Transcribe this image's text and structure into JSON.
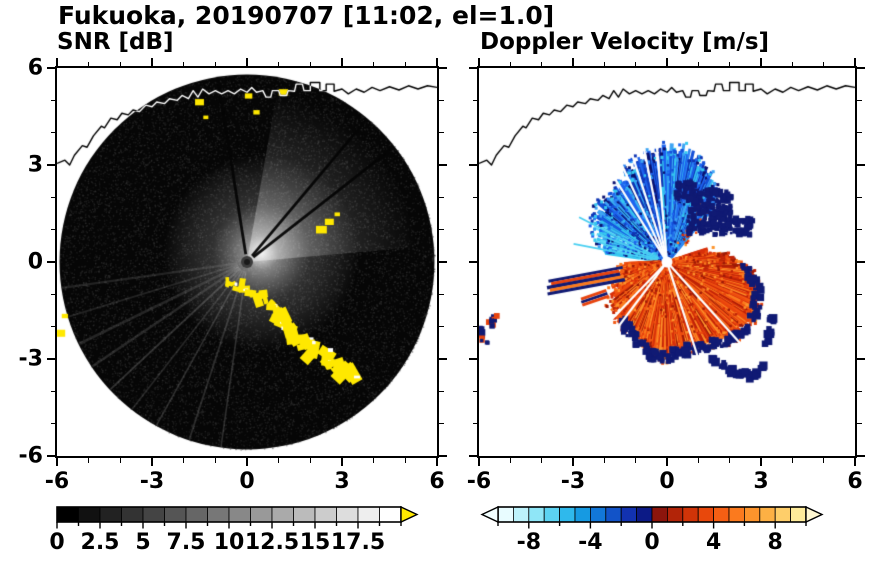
{
  "figure_title": "Fukuoka, 20190707 [11:02, el=1.0]",
  "panels": {
    "snr": {
      "title": "SNR [dB]",
      "x_tick_labels": [
        "-6",
        "-3",
        "0",
        "3",
        "6"
      ],
      "y_tick_labels": [
        "6",
        "3",
        "0",
        "-3",
        "-6"
      ],
      "colorbar_labels": [
        "0",
        "2.5",
        "5",
        "7.5",
        "10",
        "12.5",
        "15",
        "17.5"
      ]
    },
    "doppler": {
      "title": "Doppler Velocity [m/s]",
      "x_tick_labels": [
        "-6",
        "-3",
        "0",
        "3",
        "6"
      ],
      "colorbar_labels": [
        "-8",
        "-4",
        "0",
        "4",
        "8"
      ]
    }
  },
  "chart_data": [
    {
      "type": "heatmap",
      "title": "SNR [dB]",
      "variable": "signal-to-noise ratio",
      "units": "dB",
      "xlim": [
        -6,
        6
      ],
      "ylim": [
        -6,
        6
      ],
      "axis_tick_values": [
        -6,
        -3,
        0,
        3,
        6
      ],
      "minor_tick_step": 1,
      "grid": false,
      "colorbar": {
        "orientation": "horizontal",
        "min": 0,
        "max": 20,
        "tick_step": 1.25,
        "label_values": [
          0,
          2.5,
          5,
          7.5,
          10,
          12.5,
          15,
          17.5
        ],
        "segment_colors": [
          "#000000",
          "#111111",
          "#222222",
          "#333333",
          "#444444",
          "#555555",
          "#666666",
          "#777777",
          "#888888",
          "#999999",
          "#aaaaaa",
          "#bbbbbb",
          "#cccccc",
          "#dddddd",
          "#eeeeee",
          "#ffffff"
        ],
        "over_arrow_color": "#ffe800"
      },
      "scan": {
        "disk_radius_km": 5.92,
        "background_color": "#060606",
        "glow": {
          "max_radius_km": 3.1,
          "wedge_math_deg": [
            5,
            80
          ],
          "wedge_radius_km": 5.5
        },
        "light_spokes_math_deg": [
          188,
          197,
          206,
          214,
          223,
          232,
          241,
          252,
          262
        ],
        "dark_spokes_math_deg": [
          38,
          50,
          99
        ],
        "clutter_color": "#ffe800",
        "clutter_arc_km": [
          [
            -0.5,
            -0.55
          ],
          [
            -0.2,
            -0.75
          ],
          [
            0.1,
            -0.9
          ],
          [
            0.45,
            -1.05
          ],
          [
            0.75,
            -1.3
          ],
          [
            1.0,
            -1.55
          ],
          [
            1.2,
            -1.8
          ],
          [
            1.35,
            -2.1
          ],
          [
            1.55,
            -2.35
          ],
          [
            1.8,
            -2.55
          ],
          [
            2.1,
            -2.75
          ],
          [
            2.4,
            -2.95
          ],
          [
            2.7,
            -3.15
          ],
          [
            3.0,
            -3.3
          ],
          [
            3.3,
            -3.35
          ]
        ],
        "clutter_spots_km": [
          [
            -5.75,
            -1.7
          ],
          [
            -5.9,
            -2.25
          ],
          [
            2.35,
            0.95
          ],
          [
            2.6,
            1.2
          ],
          [
            2.85,
            1.45
          ],
          [
            -1.5,
            4.9
          ],
          [
            -1.3,
            4.45
          ],
          [
            0.3,
            4.6
          ],
          [
            0.05,
            5.1
          ],
          [
            1.15,
            5.2
          ]
        ],
        "radar_dot_color": "#3c3c3c"
      }
    },
    {
      "type": "heatmap",
      "title": "Doppler Velocity [m/s]",
      "variable": "Doppler velocity",
      "units": "m/s",
      "xlim": [
        -6,
        6
      ],
      "ylim": [
        -6,
        6
      ],
      "axis_tick_values": [
        -6,
        -3,
        0,
        3,
        6
      ],
      "minor_tick_step": 1,
      "grid": false,
      "colorbar": {
        "orientation": "horizontal",
        "min": -10,
        "max": 10,
        "tick_step": 2,
        "label_values": [
          -8,
          -4,
          0,
          4,
          8
        ],
        "segment_colors": [
          "#e8fcff",
          "#bdf2fb",
          "#8fe6f7",
          "#5cd3f2",
          "#2fb9ec",
          "#169ae2",
          "#1277d8",
          "#1253c8",
          "#1232b0",
          "#0c1a86",
          "#8c150c",
          "#b22408",
          "#d03408",
          "#e8480c",
          "#f55f14",
          "#fb7a1e",
          "#fd942c",
          "#fdb044",
          "#fece6a",
          "#feeb9a"
        ],
        "under_arrow_color": "#f2ffff",
        "over_arrow_color": "#fff8d2"
      },
      "fields": {
        "toward_fan": {
          "math_deg_range": [
            50,
            172
          ],
          "radius_ctrl": [
            [
              50,
              2.3
            ],
            [
              62,
              2.9
            ],
            [
              72,
              3.3
            ],
            [
              82,
              3.55
            ],
            [
              92,
              3.5
            ],
            [
              102,
              3.35
            ],
            [
              112,
              3.1
            ],
            [
              122,
              2.75
            ],
            [
              132,
              2.5
            ],
            [
              142,
              2.75
            ],
            [
              152,
              2.45
            ],
            [
              162,
              2.1
            ],
            [
              172,
              1.75
            ]
          ],
          "palette": [
            "#1e64ee",
            "#1e64ee",
            "#2b84f4",
            "#1450d8",
            "#0f35b4",
            "#3da4f4",
            "#35c8f0",
            "#0a1270"
          ],
          "edge_palette": [
            "#35c8f0",
            "#63dcf8",
            "#2b9ae8",
            "#9aecfb"
          ],
          "gap_math_deg": [
            95,
            101.5,
            108,
            115,
            122
          ]
        },
        "away_fan": {
          "math_deg_range": [
            -178,
            18
          ],
          "radius_ctrl": [
            [
              -178,
              1.2
            ],
            [
              -172,
              1.3
            ],
            [
              -162,
              1.5
            ],
            [
              -152,
              1.8
            ],
            [
              -142,
              2.1
            ],
            [
              -132,
              2.2
            ],
            [
              -122,
              2.3
            ],
            [
              -112,
              2.5
            ],
            [
              -102,
              2.8
            ],
            [
              -92,
              2.9
            ],
            [
              -82,
              2.75
            ],
            [
              -72,
              2.7
            ],
            [
              -62,
              2.85
            ],
            [
              -52,
              3.0
            ],
            [
              -42,
              3.15
            ],
            [
              -32,
              3.1
            ],
            [
              -22,
              2.95
            ],
            [
              -12,
              2.7
            ],
            [
              -2,
              2.3
            ],
            [
              8,
              1.7
            ],
            [
              18,
              1.1
            ]
          ],
          "palette": [
            "#e8440e",
            "#f25a14",
            "#d8300a",
            "#fb7a1e",
            "#c02408",
            "#fd942c",
            "#f0500f",
            "#9e1a06"
          ],
          "gap_math_deg": [
            -127,
            -134,
            -48,
            -72
          ]
        },
        "aliased_color": "#101a74",
        "aliased_clusters": [
          {
            "center": [
              1.35,
              1.55
            ],
            "spread": 0.7,
            "n": 240
          },
          {
            "center": [
              2.45,
              1.1
            ],
            "spread": 0.28,
            "n": 40
          },
          {
            "center": [
              0.6,
              2.2
            ],
            "spread": 0.3,
            "n": 40
          }
        ],
        "aliased_arc_km": [
          [
            1.55,
            -3.05
          ],
          [
            1.8,
            -3.2
          ],
          [
            2.05,
            -3.35
          ],
          [
            2.3,
            -3.45
          ],
          [
            2.55,
            -3.5
          ],
          [
            2.8,
            -3.45
          ],
          [
            3.0,
            -3.3
          ],
          [
            3.15,
            -2.5
          ],
          [
            3.3,
            -2.15
          ],
          [
            3.35,
            -1.8
          ]
        ],
        "stripe_bands": [
          {
            "from": [
              -3.85,
              -0.8
            ],
            "to": [
              -1.35,
              -0.35
            ],
            "colors": [
              "#101a74",
              "#e8440e",
              "#101a74",
              "#fb7a1e",
              "#101a74"
            ]
          },
          {
            "from": [
              -2.75,
              -1.25
            ],
            "to": [
              -1.85,
              -0.95
            ],
            "colors": [
              "#e8440e",
              "#101a74",
              "#e8440e"
            ]
          }
        ],
        "west_spots": [
          {
            "center": [
              -5.55,
              -1.82
            ],
            "spread": 0.16,
            "n": 10,
            "colors": [
              "#e8440e",
              "#101a74"
            ]
          },
          {
            "center": [
              -5.82,
              -2.38
            ],
            "spread": 0.12,
            "n": 7,
            "colors": [
              "#101a74",
              "#e8440e"
            ]
          },
          {
            "center": [
              -5.95,
              -2.1
            ],
            "spread": 0.08,
            "n": 4,
            "colors": [
              "#101a74"
            ]
          }
        ]
      }
    }
  ],
  "coastline_km": [
    [
      -6.0,
      3.05
    ],
    [
      -5.75,
      3.15
    ],
    [
      -5.6,
      3.0
    ],
    [
      -5.45,
      3.3
    ],
    [
      -5.2,
      3.6
    ],
    [
      -5.05,
      3.55
    ],
    [
      -4.85,
      3.9
    ],
    [
      -4.6,
      4.2
    ],
    [
      -4.5,
      4.15
    ],
    [
      -4.3,
      4.45
    ],
    [
      -4.1,
      4.4
    ],
    [
      -3.95,
      4.6
    ],
    [
      -3.75,
      4.55
    ],
    [
      -3.6,
      4.7
    ],
    [
      -3.4,
      4.65
    ],
    [
      -3.2,
      4.85
    ],
    [
      -3.0,
      4.8
    ],
    [
      -2.85,
      4.95
    ],
    [
      -2.6,
      4.9
    ],
    [
      -2.45,
      5.05
    ],
    [
      -2.2,
      5.0
    ],
    [
      -2.05,
      5.15
    ],
    [
      -1.85,
      5.05
    ],
    [
      -1.7,
      5.3
    ],
    [
      -1.55,
      5.1
    ],
    [
      -1.4,
      5.35
    ],
    [
      -1.2,
      5.2
    ],
    [
      -1.0,
      5.3
    ],
    [
      -0.8,
      5.2
    ],
    [
      -0.6,
      5.3
    ],
    [
      -0.4,
      5.2
    ],
    [
      -0.2,
      5.35
    ],
    [
      0.0,
      5.25
    ],
    [
      0.15,
      5.4
    ],
    [
      0.3,
      5.25
    ],
    [
      0.5,
      5.3
    ],
    [
      0.6,
      5.1
    ],
    [
      0.75,
      5.1
    ],
    [
      0.8,
      5.3
    ],
    [
      1.0,
      5.3
    ],
    [
      1.05,
      5.15
    ],
    [
      1.25,
      5.15
    ],
    [
      1.3,
      5.3
    ],
    [
      1.5,
      5.28
    ],
    [
      1.55,
      5.5
    ],
    [
      1.75,
      5.5
    ],
    [
      1.8,
      5.3
    ],
    [
      2.0,
      5.3
    ],
    [
      2.0,
      5.55
    ],
    [
      2.3,
      5.55
    ],
    [
      2.3,
      5.3
    ],
    [
      2.5,
      5.3
    ],
    [
      2.5,
      5.5
    ],
    [
      2.75,
      5.5
    ],
    [
      2.75,
      5.28
    ],
    [
      3.0,
      5.35
    ],
    [
      3.2,
      5.2
    ],
    [
      3.45,
      5.35
    ],
    [
      3.7,
      5.25
    ],
    [
      3.95,
      5.4
    ],
    [
      4.2,
      5.3
    ],
    [
      4.5,
      5.42
    ],
    [
      4.8,
      5.32
    ],
    [
      5.1,
      5.45
    ],
    [
      5.4,
      5.35
    ],
    [
      5.7,
      5.45
    ],
    [
      6.0,
      5.4
    ]
  ]
}
